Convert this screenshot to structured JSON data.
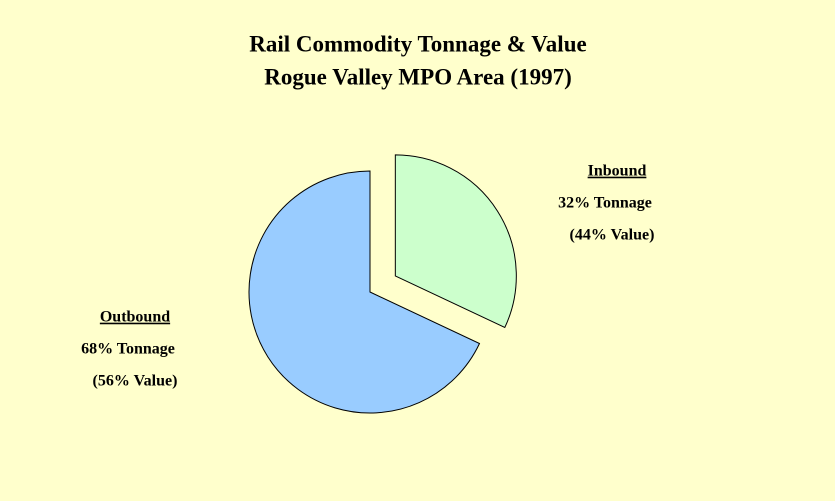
{
  "chart_data": {
    "type": "pie",
    "title": "Rail Commodity Tonnage & Value",
    "subtitle": "Rogue Valley MPO Area (1997)",
    "categories": [
      "Inbound",
      "Outbound"
    ],
    "colors": [
      "#ccffcc",
      "#99ccff"
    ],
    "series": [
      {
        "values": [
          32,
          68
        ],
        "value_labels": [
          "32% Tonnage",
          "68% Tonnage"
        ]
      },
      {
        "values": [
          44,
          56
        ],
        "value_labels": [
          "(44% Value)",
          "(56% Value)"
        ]
      }
    ],
    "exploded": [
      true,
      false
    ]
  }
}
